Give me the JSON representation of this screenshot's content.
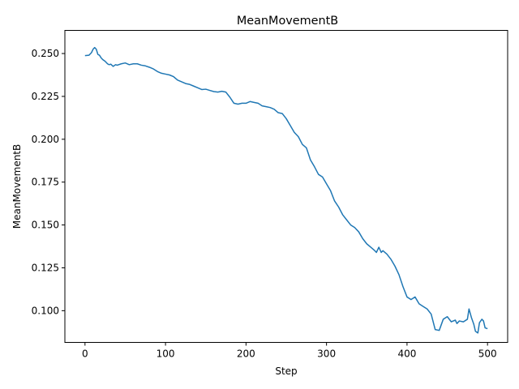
{
  "chart_data": {
    "type": "line",
    "title": "MeanMovementB",
    "xlabel": "Step",
    "ylabel": "MeanMovementB",
    "xlim": [
      -25,
      525
    ],
    "ylim": [
      0.0815,
      0.2635
    ],
    "xticks": [
      0,
      100,
      200,
      300,
      400,
      500
    ],
    "xtick_labels": [
      "0",
      "100",
      "200",
      "300",
      "400",
      "500"
    ],
    "yticks": [
      0.1,
      0.125,
      0.15,
      0.175,
      0.2,
      0.225,
      0.25
    ],
    "ytick_labels": [
      "0.100",
      "0.125",
      "0.150",
      "0.175",
      "0.200",
      "0.225",
      "0.250"
    ],
    "grid": false,
    "series": [
      {
        "color": "#1f77b4",
        "x": [
          0,
          5,
          8,
          10,
          12,
          14,
          16,
          18,
          20,
          22,
          25,
          28,
          30,
          32,
          35,
          38,
          40,
          45,
          50,
          55,
          60,
          65,
          70,
          75,
          80,
          85,
          90,
          95,
          100,
          105,
          110,
          115,
          120,
          125,
          130,
          135,
          140,
          145,
          150,
          155,
          160,
          165,
          170,
          175,
          180,
          185,
          190,
          195,
          200,
          205,
          210,
          215,
          220,
          225,
          230,
          235,
          240,
          245,
          250,
          255,
          260,
          265,
          270,
          275,
          280,
          285,
          290,
          295,
          300,
          305,
          310,
          315,
          320,
          325,
          330,
          335,
          340,
          345,
          350,
          355,
          360,
          362,
          365,
          368,
          370,
          375,
          380,
          385,
          390,
          395,
          400,
          405,
          410,
          415,
          420,
          425,
          430,
          435,
          440,
          445,
          450,
          455,
          460,
          462,
          465,
          470,
          475,
          477,
          480,
          483,
          485,
          488,
          490,
          493,
          495,
          497,
          500
        ],
        "values": [
          0.2488,
          0.249,
          0.2505,
          0.2525,
          0.2535,
          0.2525,
          0.2495,
          0.249,
          0.2475,
          0.2465,
          0.2455,
          0.244,
          0.2435,
          0.2438,
          0.2425,
          0.2435,
          0.2432,
          0.244,
          0.2445,
          0.2435,
          0.244,
          0.244,
          0.2432,
          0.2428,
          0.242,
          0.241,
          0.2395,
          0.2385,
          0.238,
          0.2375,
          0.2365,
          0.2345,
          0.2335,
          0.2325,
          0.232,
          0.231,
          0.23,
          0.229,
          0.2292,
          0.2285,
          0.2278,
          0.2275,
          0.228,
          0.2275,
          0.2245,
          0.221,
          0.2205,
          0.221,
          0.221,
          0.222,
          0.2215,
          0.221,
          0.2195,
          0.219,
          0.2185,
          0.2175,
          0.2155,
          0.215,
          0.212,
          0.208,
          0.204,
          0.2015,
          0.197,
          0.195,
          0.188,
          0.184,
          0.1795,
          0.178,
          0.174,
          0.17,
          0.164,
          0.1605,
          0.156,
          0.153,
          0.15,
          0.1485,
          0.146,
          0.142,
          0.139,
          0.137,
          0.135,
          0.134,
          0.137,
          0.134,
          0.135,
          0.133,
          0.13,
          0.126,
          0.121,
          0.114,
          0.108,
          0.1065,
          0.108,
          0.104,
          0.1025,
          0.101,
          0.098,
          0.089,
          0.0885,
          0.095,
          0.0965,
          0.0935,
          0.0945,
          0.0925,
          0.094,
          0.0935,
          0.095,
          0.101,
          0.096,
          0.092,
          0.088,
          0.087,
          0.093,
          0.095,
          0.094,
          0.09,
          0.0895
        ]
      }
    ]
  }
}
